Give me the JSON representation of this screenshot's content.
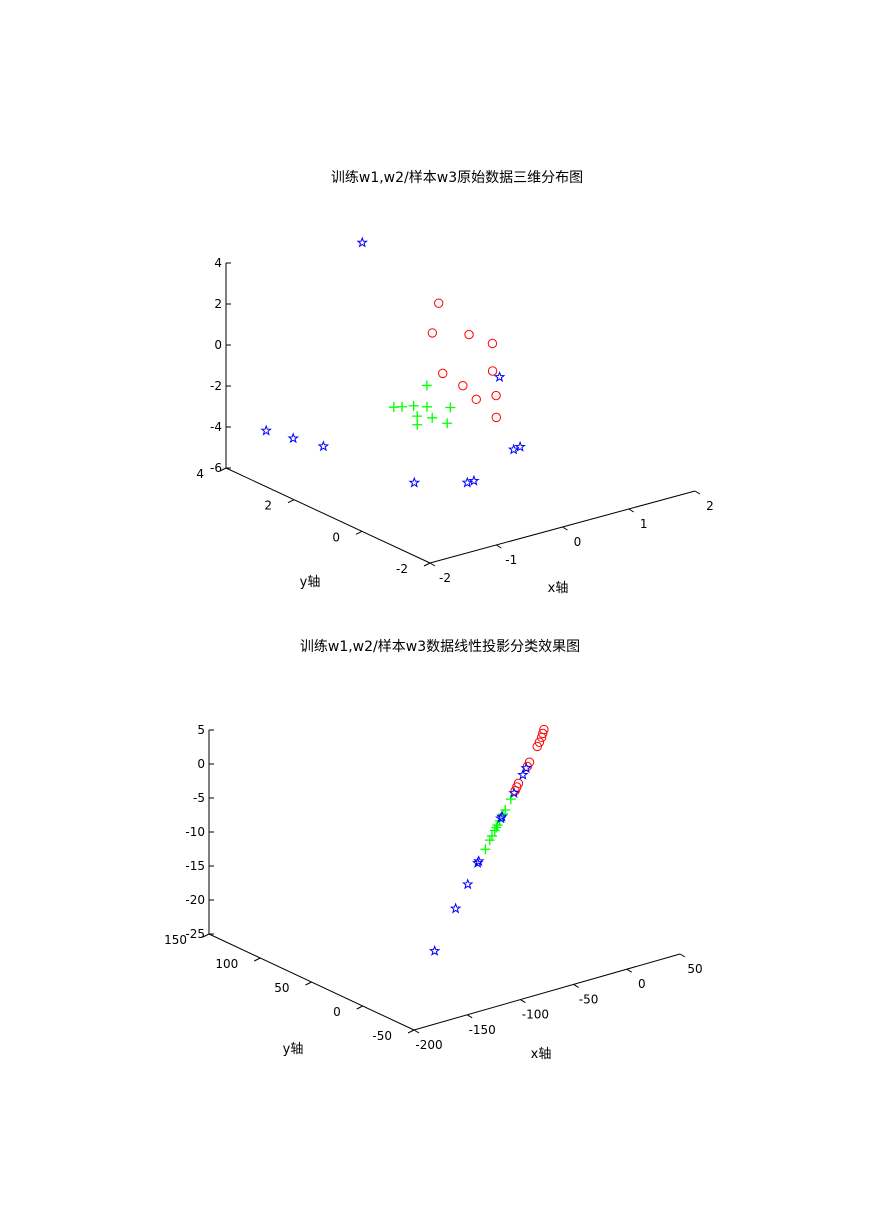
{
  "chart_data": [
    {
      "type": "scatter",
      "projection": "3d",
      "title": "训练w1,w2/样本w3原始数据三维分布图",
      "xlabel": "x轴",
      "ylabel": "y轴",
      "zlabel": "",
      "xlim": [
        -2,
        2
      ],
      "ylim": [
        -2,
        4
      ],
      "zlim": [
        -6,
        4
      ],
      "xticks": [
        "-2",
        "-1",
        "0",
        "1",
        "2"
      ],
      "yticks": [
        "-2",
        "0",
        "2",
        "4"
      ],
      "zticks": [
        "-6",
        "-4",
        "-2",
        "0",
        "2",
        "4"
      ],
      "grid": false,
      "series": [
        {
          "marker": "circle",
          "color": "#ff0000",
          "points": [
            [
              0.8,
              3.2,
              0.2
            ],
            [
              0.95,
              2.6,
              -1.0
            ],
            [
              0.55,
              2.9,
              -0.8
            ],
            [
              1.2,
              2.4,
              -1.5
            ],
            [
              0.6,
              2.1,
              -2.8
            ],
            [
              1.1,
              2.2,
              -2.6
            ],
            [
              0.7,
              1.9,
              -3.4
            ],
            [
              0.45,
              2.4,
              -2.3
            ],
            [
              1.05,
              2.0,
              -3.6
            ],
            [
              0.9,
              1.7,
              -4.3
            ]
          ]
        },
        {
          "marker": "plus",
          "color": "#00ff00",
          "points": [
            [
              -0.2,
              1.6,
              -1.7
            ],
            [
              -0.3,
              1.4,
              -2.5
            ],
            [
              -0.45,
              1.5,
              -2.4
            ],
            [
              -0.6,
              1.55,
              -2.35
            ],
            [
              -0.55,
              1.2,
              -3.0
            ],
            [
              -0.15,
              1.1,
              -3.2
            ],
            [
              -0.35,
              1.15,
              -2.8
            ],
            [
              -0.75,
              1.5,
              -2.2
            ],
            [
              -0.05,
              1.2,
              -2.6
            ],
            [
              -0.5,
              1.3,
              -2.7
            ]
          ]
        },
        {
          "marker": "star",
          "color": "#0000ff",
          "points": [
            [
              -0.2,
              3.5,
              3.8
            ],
            [
              1.0,
              1.8,
              -2.5
            ],
            [
              0.9,
              1.0,
              -5.2
            ],
            [
              0.7,
              0.8,
              -5.0
            ],
            [
              0.0,
              0.8,
              -6.0
            ],
            [
              0.1,
              0.8,
              -6.0
            ],
            [
              -1.3,
              2.5,
              -4.4
            ],
            [
              -1.55,
              2.9,
              -4.1
            ],
            [
              -1.65,
              3.5,
              -4.1
            ],
            [
              -0.8,
              0.8,
              -5.3
            ]
          ]
        }
      ]
    },
    {
      "type": "scatter",
      "projection": "3d",
      "title": "训练w1,w2/样本w3数据线性投影分类效果图",
      "xlabel": "x轴",
      "ylabel": "y轴",
      "zlabel": "",
      "xlim": [
        -200,
        50
      ],
      "ylim": [
        -50,
        150
      ],
      "zlim": [
        -25,
        5
      ],
      "xticks": [
        "-200",
        "-150",
        "-100",
        "-50",
        "0",
        "50"
      ],
      "yticks": [
        "-50",
        "0",
        "50",
        "100",
        "150"
      ],
      "zticks": [
        "-25",
        "-20",
        "-15",
        "-10",
        "-5",
        "0",
        "5"
      ],
      "grid": false,
      "series": [
        {
          "marker": "circle",
          "color": "#ff0000",
          "points": [
            [
              30,
              62,
              1.0
            ],
            [
              27,
              60,
              0.7
            ],
            [
              24,
              58,
              0.4
            ],
            [
              20,
              56,
              0.0
            ],
            [
              16,
              54,
              -0.3
            ],
            [
              2,
              47,
              -1.5
            ],
            [
              -2,
              45,
              -1.8
            ],
            [
              -18,
              37,
              -3.0
            ],
            [
              -21,
              35.5,
              -3.3
            ],
            [
              -24,
              34,
              -3.6
            ]
          ]
        },
        {
          "marker": "plus",
          "color": "#00ff00",
          "points": [
            [
              -32,
              30,
              -4.2
            ],
            [
              -42,
              25,
              -5.0
            ],
            [
              -46,
              23,
              -5.3
            ],
            [
              -52,
              20,
              -5.8
            ],
            [
              -56,
              18,
              -6.1
            ],
            [
              -61,
              15.5,
              -6.5
            ],
            [
              -66,
              13,
              -6.9
            ],
            [
              -70,
              11,
              -7.2
            ],
            [
              -78,
              7,
              -7.9
            ],
            [
              -58,
              17,
              -6.3
            ]
          ]
        },
        {
          "marker": "star",
          "color": "#0000ff",
          "points": [
            [
              -10,
              41,
              -2.4
            ],
            [
              -4,
              44,
              -1.9
            ],
            [
              -26,
              33,
              -3.8
            ],
            [
              -48,
              22,
              -5.5
            ],
            [
              -50,
              21,
              -5.6
            ],
            [
              -90,
              1,
              -8.7
            ],
            [
              -92,
              0,
              -8.8
            ],
            [
              -110,
              -9,
              -10.5
            ],
            [
              -132,
              -20,
              -12.3
            ],
            [
              -170,
              -39,
              -15.5
            ]
          ]
        }
      ]
    }
  ]
}
